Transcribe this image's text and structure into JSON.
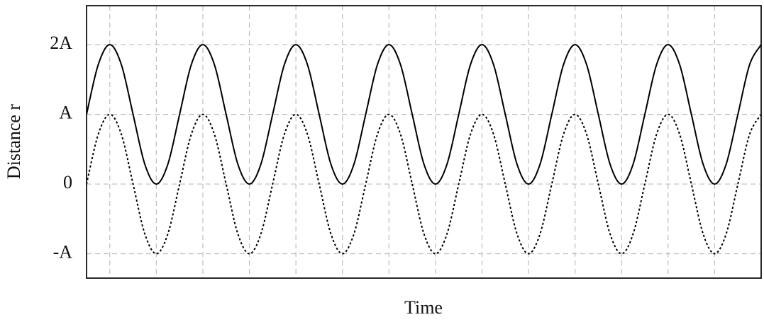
{
  "chart_data": {
    "type": "line",
    "xlabel": "Time",
    "ylabel": "Distance r",
    "xlim": [
      0,
      7.25
    ],
    "xticks": [
      0.25,
      0.75,
      1.25,
      1.75,
      2.25,
      2.75,
      3.25,
      3.75,
      4.25,
      4.75,
      5.25,
      5.75,
      6.25,
      6.75
    ],
    "ylim": [
      -1.35,
      2.56
    ],
    "yticks": [
      {
        "value": -1,
        "label": "-A"
      },
      {
        "value": 0,
        "label": "0"
      },
      {
        "value": 1,
        "label": "A"
      },
      {
        "value": 2,
        "label": "2A"
      }
    ],
    "grid": true,
    "x": [
      0,
      0.125,
      0.25,
      0.375,
      0.5,
      0.625,
      0.75,
      0.875,
      1,
      1.125,
      1.25,
      1.375,
      1.5,
      1.625,
      1.75,
      1.875,
      2,
      2.125,
      2.25,
      2.375,
      2.5,
      2.625,
      2.75,
      2.875,
      3,
      3.125,
      3.25,
      3.375,
      3.5,
      3.625,
      3.75,
      3.875,
      4,
      4.125,
      4.25,
      4.375,
      4.5,
      4.625,
      4.75,
      4.875,
      5,
      5.125,
      5.25,
      5.375,
      5.5,
      5.625,
      5.75,
      5.875,
      6,
      6.125,
      6.25,
      6.375,
      6.5,
      6.625,
      6.75,
      6.875,
      7,
      7.125,
      7.25
    ],
    "series": [
      {
        "color": "#000000",
        "line_style": "solid",
        "values": [
          1,
          1.71,
          2,
          1.71,
          1,
          0.29,
          0,
          0.29,
          1,
          1.71,
          2,
          1.71,
          1,
          0.29,
          0,
          0.29,
          1,
          1.71,
          2,
          1.71,
          1,
          0.29,
          0,
          0.29,
          1,
          1.71,
          2,
          1.71,
          1,
          0.29,
          0,
          0.29,
          1,
          1.71,
          2,
          1.71,
          1,
          0.29,
          0,
          0.29,
          1,
          1.71,
          2,
          1.71,
          1,
          0.29,
          0,
          0.29,
          1,
          1.71,
          2,
          1.71,
          1,
          0.29,
          0,
          0.29,
          1,
          1.71,
          2
        ]
      },
      {
        "color": "#000000",
        "line_style": "dotted",
        "values": [
          0,
          0.71,
          1,
          0.71,
          0,
          -0.71,
          -1,
          -0.71,
          0,
          0.71,
          1,
          0.71,
          0,
          -0.71,
          -1,
          -0.71,
          0,
          0.71,
          1,
          0.71,
          0,
          -0.71,
          -1,
          -0.71,
          0,
          0.71,
          1,
          0.71,
          0,
          -0.71,
          -1,
          -0.71,
          0,
          0.71,
          1,
          0.71,
          0,
          -0.71,
          -1,
          -0.71,
          0,
          0.71,
          1,
          0.71,
          0,
          -0.71,
          -1,
          -0.71,
          0,
          0.71,
          1,
          0.71,
          0,
          -0.71,
          -1,
          -0.71,
          0,
          0.71,
          1
        ]
      }
    ]
  }
}
